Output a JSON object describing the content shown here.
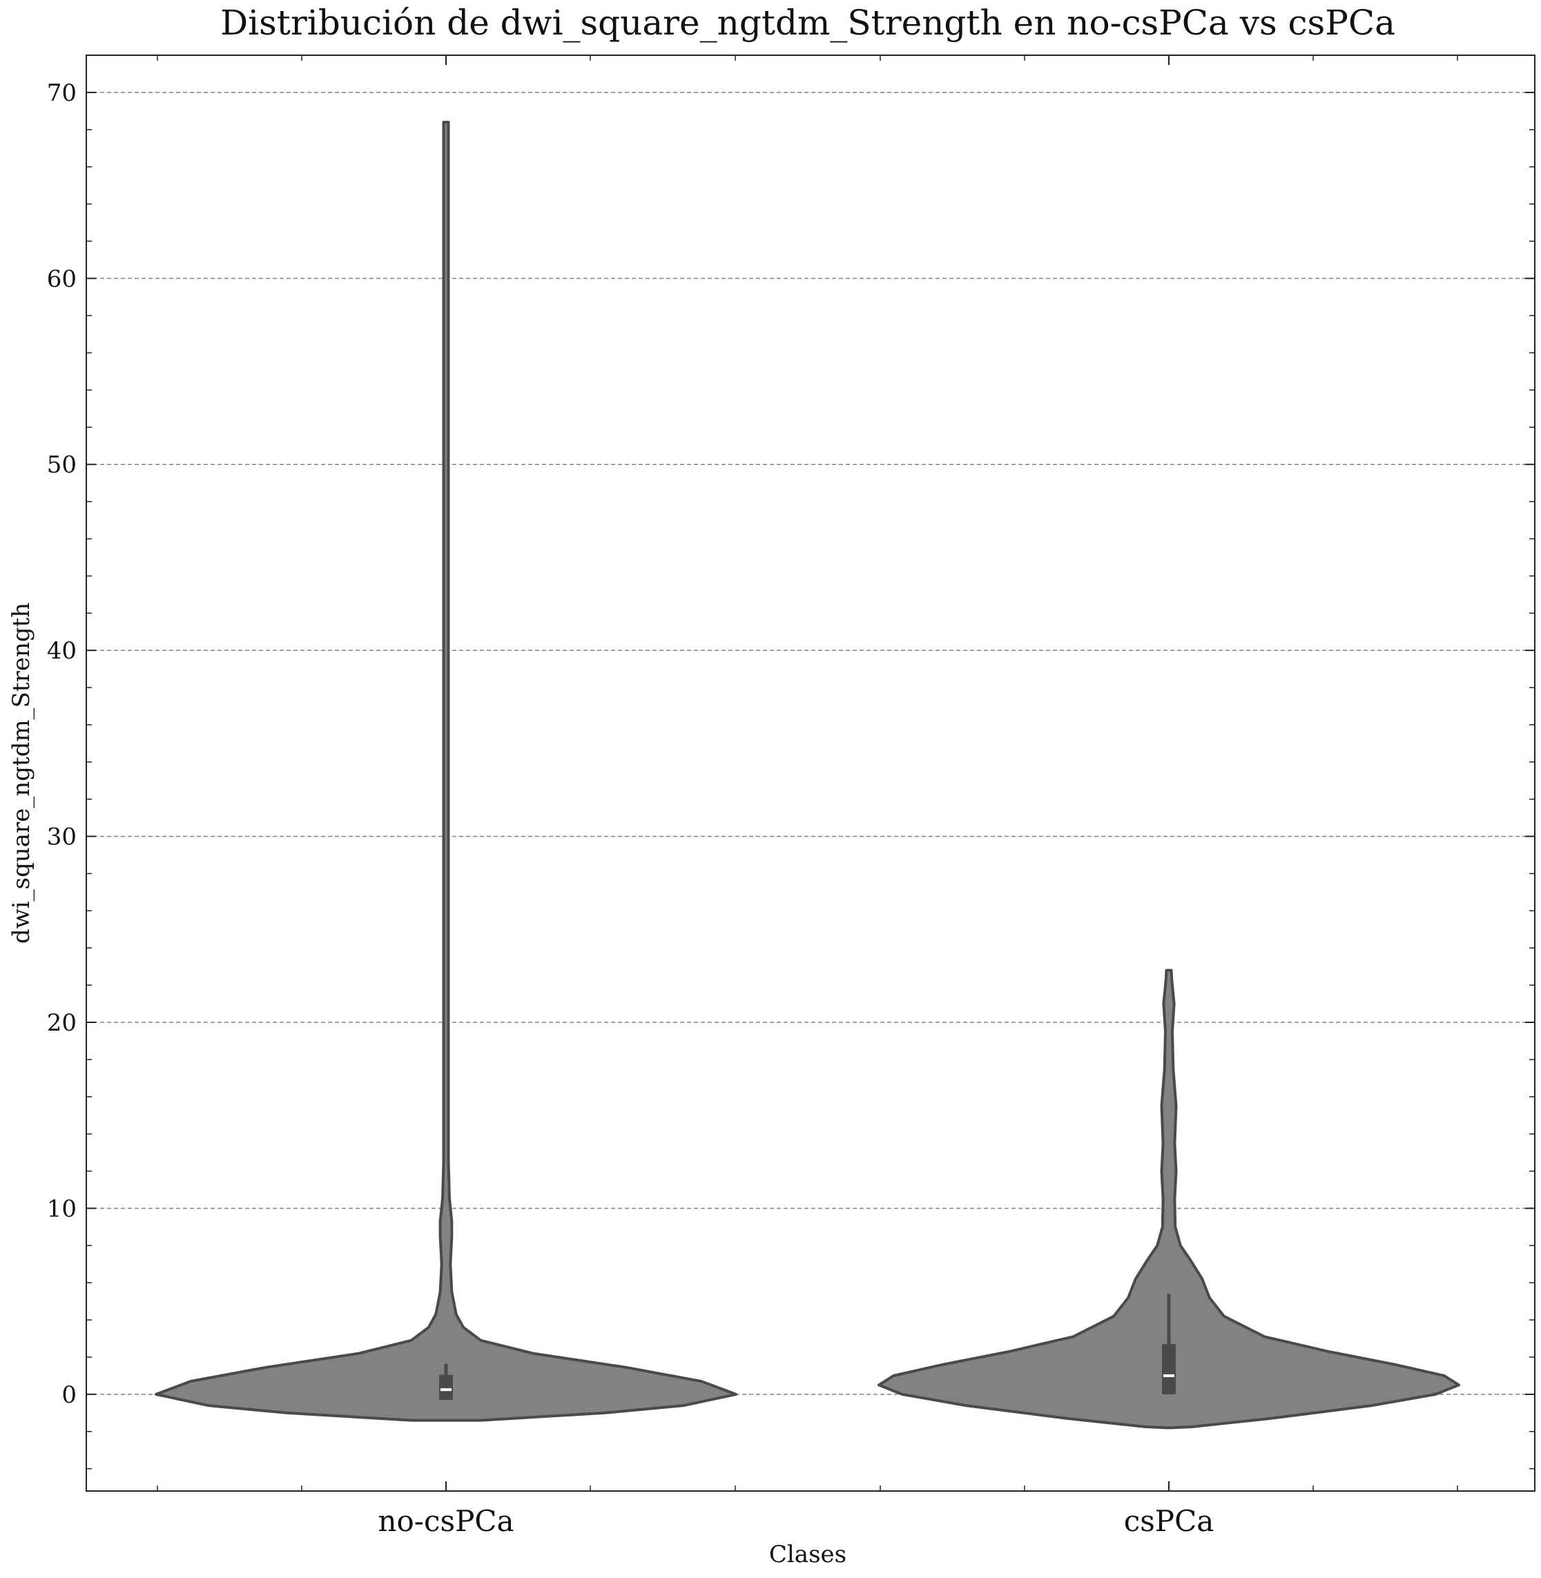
{
  "chart_data": {
    "type": "violin",
    "title": "Distribución de dwi_square_ngtdm_Strength en no-csPCa vs csPCa",
    "xlabel": "Clases",
    "ylabel": "dwi_square_ngtdm_Strength",
    "categories": [
      "no-csPCa",
      "csPCa"
    ],
    "ylim": [
      -5.2,
      72
    ],
    "yticks": [
      0,
      10,
      20,
      30,
      40,
      50,
      60,
      70
    ],
    "grid": "y-dashed",
    "colors": {
      "fill": "#828282",
      "edge": "#4a4a4a",
      "median": "#ffffff",
      "grid": "#808080"
    },
    "violins": [
      {
        "category": "no-csPCa",
        "max": 68.4,
        "median": 0.25,
        "q1": -0.3,
        "q3": 1.05,
        "whisker_low": -0.3,
        "whisker_high": 1.65,
        "density_profile": [
          [
            -1.4,
            0.12
          ],
          [
            -1.0,
            0.55
          ],
          [
            -0.6,
            0.82
          ],
          [
            0.0,
            1.0
          ],
          [
            0.7,
            0.88
          ],
          [
            1.45,
            0.62
          ],
          [
            2.2,
            0.3
          ],
          [
            2.9,
            0.12
          ],
          [
            3.6,
            0.06
          ],
          [
            4.3,
            0.035
          ],
          [
            5.5,
            0.02
          ],
          [
            7.0,
            0.015
          ],
          [
            8.5,
            0.02
          ],
          [
            9.3,
            0.02
          ],
          [
            10.5,
            0.012
          ],
          [
            12.5,
            0.008
          ],
          [
            15.0,
            0.008
          ],
          [
            20.0,
            0.006
          ],
          [
            30.0,
            0.006
          ],
          [
            40.0,
            0.006
          ],
          [
            50.0,
            0.006
          ],
          [
            60.0,
            0.006
          ],
          [
            68.4,
            0.004
          ]
        ]
      },
      {
        "category": "csPCa",
        "max": 22.8,
        "median": 1.0,
        "q1": 0.0,
        "q3": 2.7,
        "whisker_low": 0.0,
        "whisker_high": 5.4,
        "density_profile": [
          [
            -1.8,
            0.0
          ],
          [
            -1.75,
            0.08
          ],
          [
            -1.3,
            0.35
          ],
          [
            -0.6,
            0.7
          ],
          [
            0.0,
            0.92
          ],
          [
            0.5,
            1.0
          ],
          [
            1.0,
            0.95
          ],
          [
            1.6,
            0.78
          ],
          [
            2.3,
            0.55
          ],
          [
            3.1,
            0.33
          ],
          [
            4.2,
            0.19
          ],
          [
            5.2,
            0.14
          ],
          [
            6.2,
            0.115
          ],
          [
            7.2,
            0.075
          ],
          [
            8.0,
            0.04
          ],
          [
            9.0,
            0.022
          ],
          [
            10.5,
            0.02
          ],
          [
            12.0,
            0.025
          ],
          [
            13.5,
            0.02
          ],
          [
            15.5,
            0.025
          ],
          [
            17.5,
            0.015
          ],
          [
            19.5,
            0.012
          ],
          [
            21.0,
            0.018
          ],
          [
            22.3,
            0.01
          ],
          [
            22.8,
            0.0
          ]
        ]
      }
    ]
  }
}
